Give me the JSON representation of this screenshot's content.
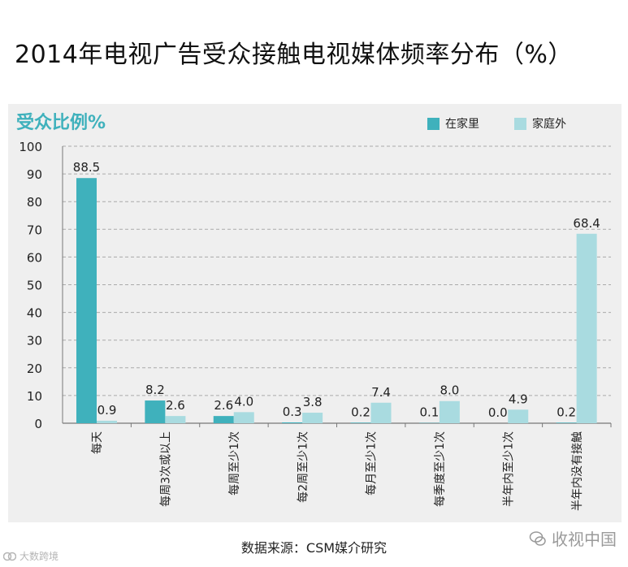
{
  "title": "2014年电视广告受众接触电视媒体频率分布（%）",
  "source": "数据来源：CSM媒介研究",
  "watermark_right": "收视中国",
  "watermark_left": "大数跨境",
  "colors": {
    "home": "#3fb1bc",
    "outside": "#a9dbe0",
    "accent": "#3fb1bc",
    "panel": "#efefef"
  },
  "chart_data": {
    "type": "bar",
    "ylabel": "受众比例%",
    "ylim": [
      0,
      100
    ],
    "yticks": [
      0,
      10,
      20,
      30,
      40,
      50,
      60,
      70,
      80,
      90,
      100
    ],
    "grid": true,
    "legend_position": "top-right",
    "categories": [
      "每天",
      "每周3次或以上",
      "每周至少1次",
      "每2周至少1次",
      "每月至少1次",
      "每季度至少1次",
      "半年内至少1次",
      "半年内没有接触"
    ],
    "series": [
      {
        "name": "在家里",
        "color": "#3fb1bc",
        "values": [
          88.5,
          8.2,
          2.6,
          0.3,
          0.2,
          0.1,
          0.0,
          0.2
        ]
      },
      {
        "name": "家庭外",
        "color": "#a9dbe0",
        "values": [
          0.9,
          2.6,
          4.0,
          3.8,
          7.4,
          8.0,
          4.9,
          68.4
        ]
      }
    ],
    "value_labels": [
      [
        "88.5",
        "8.2",
        "2.6",
        "0.3",
        "0.2",
        "0.1",
        "0.0",
        "0.2"
      ],
      [
        "0.9",
        "2.6",
        "4.0",
        "3.8",
        "7.4",
        "8.0",
        "4.9",
        "68.4"
      ]
    ]
  }
}
